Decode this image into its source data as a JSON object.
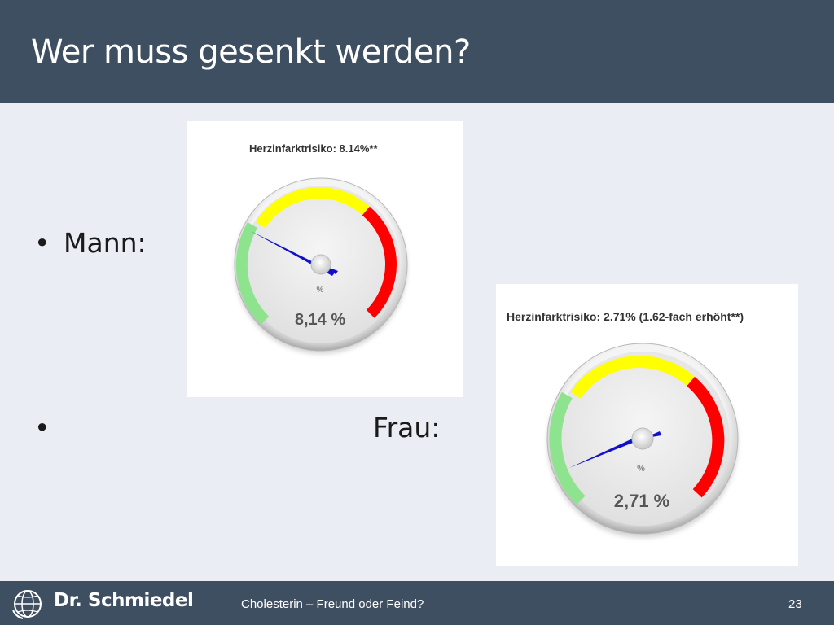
{
  "slide": {
    "title": "Wer muss gesenkt werden?",
    "bullets": [
      {
        "bullet": "•",
        "label": "Mann:"
      },
      {
        "bullet": "•",
        "label": "Frau:"
      }
    ]
  },
  "gauges": [
    {
      "caption": "Herzinfarktrisiko: 8.14%**",
      "unit": "%",
      "readout": "8,14 %",
      "needle_angle_deg": 300
    },
    {
      "caption": "Herzinfarktrisiko: 2.71% (1.62-fach erhöht**)",
      "unit": "%",
      "readout": "2,71 %",
      "needle_angle_deg": 245
    }
  ],
  "colors": {
    "zone_green": "#8ee38e",
    "zone_yellow": "#ffff00",
    "zone_red": "#ff0000",
    "needle": "#1010cc",
    "header_bg": "#3f4f62"
  },
  "footer": {
    "brand": "Dr. Schmiedel",
    "topic": "Cholesterin – Freund oder Feind?",
    "page": "23"
  }
}
